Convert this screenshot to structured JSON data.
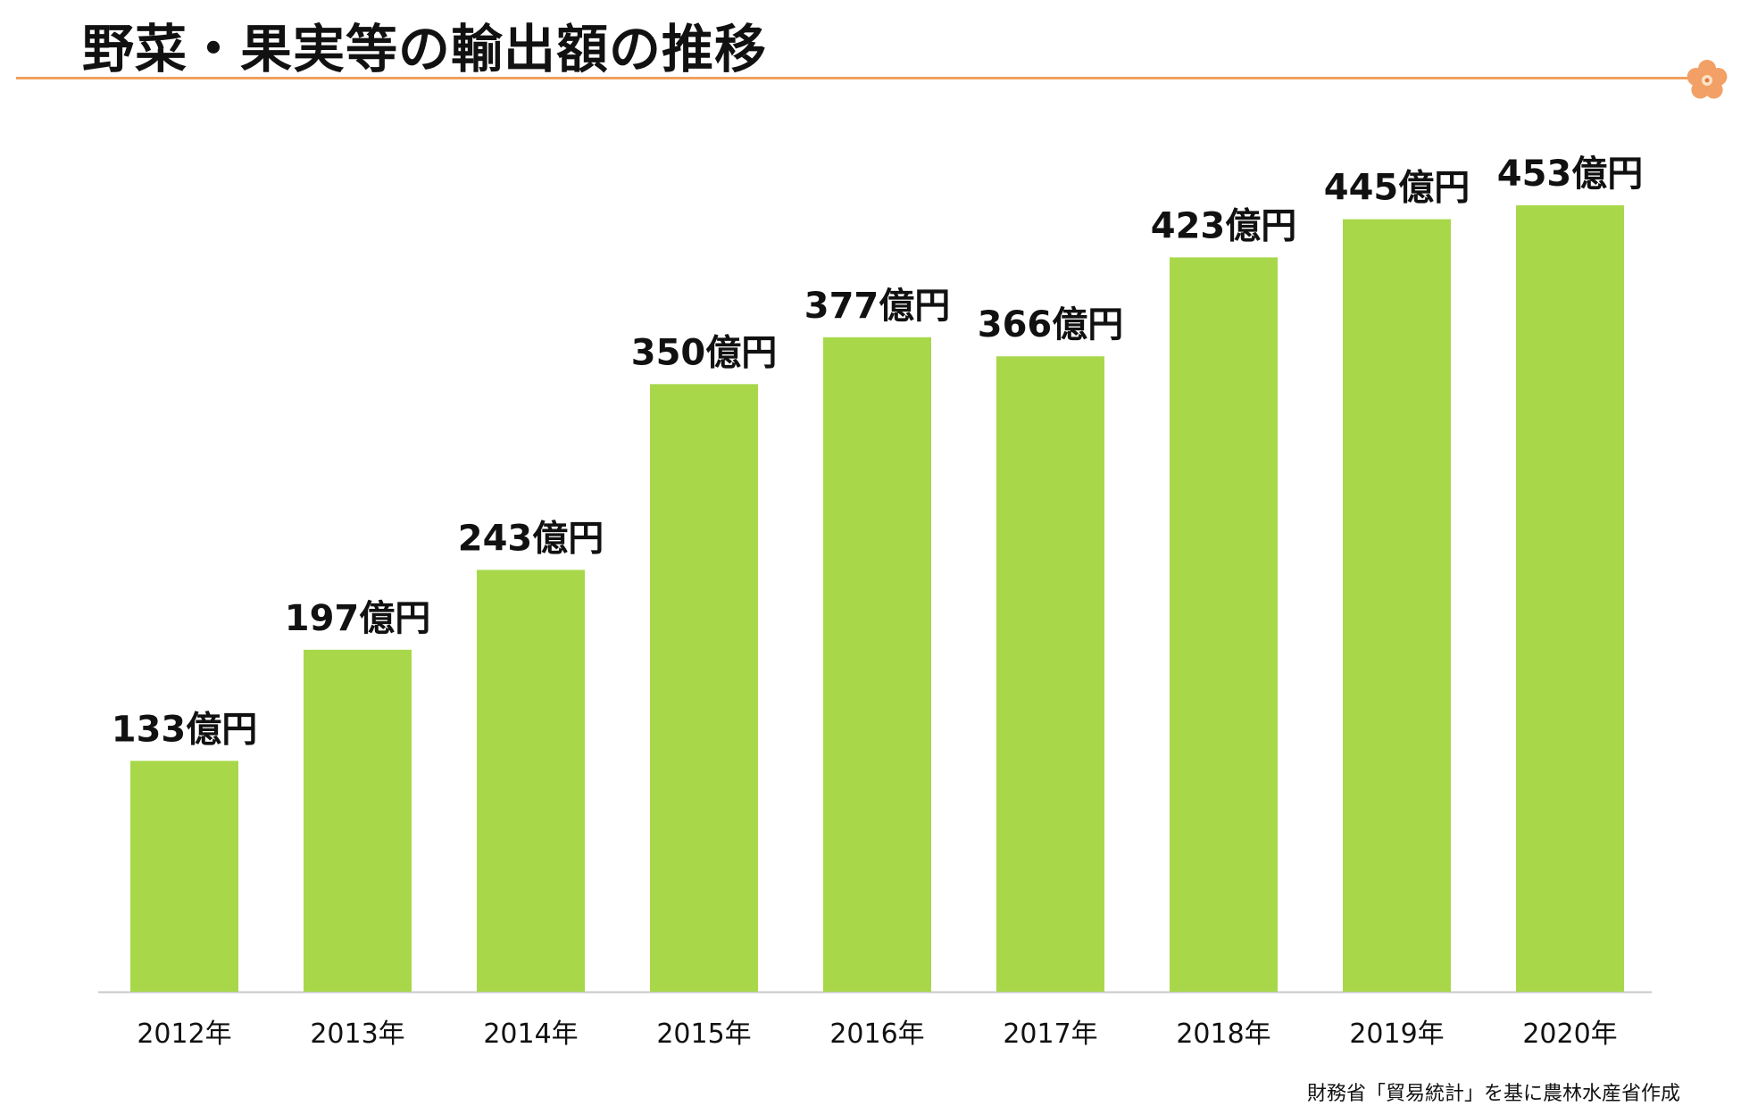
{
  "title": "野菜・果実等の輸出額の推移",
  "source": "財務省「貿易統計」を基に農林水産省作成",
  "colors": {
    "bar": "#a8d84a",
    "accent": "#f0a060",
    "axis": "#c8c8c8",
    "text": "#111111"
  },
  "icon": "plum-blossom-icon",
  "chart_data": {
    "type": "bar",
    "title": "野菜・果実等の輸出額の推移",
    "categories": [
      "2012年",
      "2013年",
      "2014年",
      "2015年",
      "2016年",
      "2017年",
      "2018年",
      "2019年",
      "2020年"
    ],
    "values": [
      133,
      197,
      243,
      350,
      377,
      366,
      423,
      445,
      453
    ],
    "data_labels": [
      "133億円",
      "197億円",
      "243億円",
      "350億円",
      "377億円",
      "366億円",
      "423億円",
      "445億円",
      "453億円"
    ],
    "unit": "億円",
    "xlabel": "",
    "ylabel": "",
    "ylim": [
      0,
      453
    ],
    "grid": false,
    "legend": "none"
  }
}
